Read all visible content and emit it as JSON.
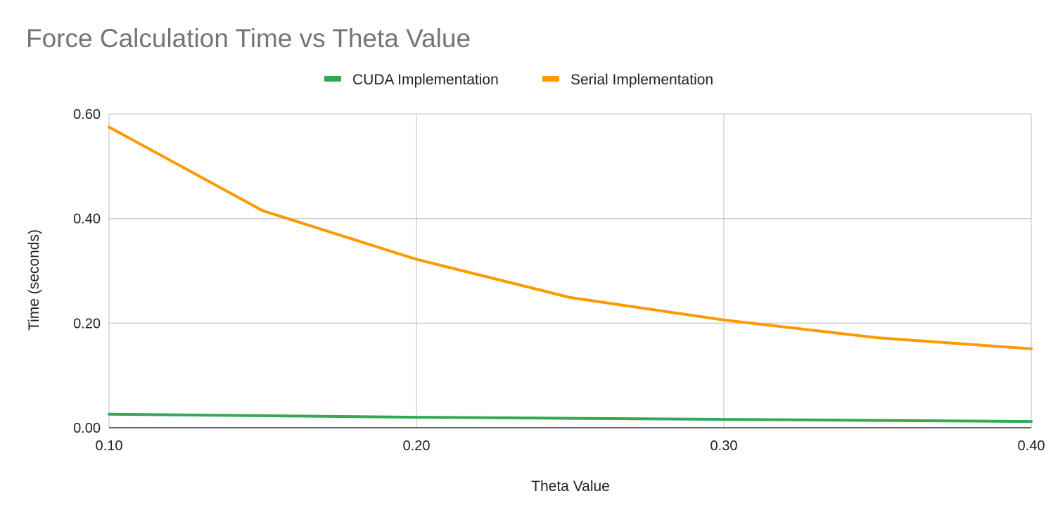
{
  "chart_data": {
    "type": "line",
    "title": "Force Calculation Time vs Theta Value",
    "xlabel": "Theta Value",
    "ylabel": "Time (seconds)",
    "x": [
      0.1,
      0.15,
      0.2,
      0.25,
      0.3,
      0.35,
      0.4
    ],
    "xlim": [
      0.1,
      0.4
    ],
    "ylim": [
      0.0,
      0.6
    ],
    "xticks": [
      0.1,
      0.2,
      0.3,
      0.4
    ],
    "xtick_labels": [
      "0.10",
      "0.20",
      "0.30",
      "0.40"
    ],
    "yticks": [
      0.0,
      0.2,
      0.4,
      0.6
    ],
    "ytick_labels": [
      "0.00",
      "0.20",
      "0.40",
      "0.60"
    ],
    "grid": true,
    "legend_position": "top-center",
    "series": [
      {
        "name": "CUDA Implementation",
        "color": "#34a853",
        "values": [
          0.026,
          0.023,
          0.02,
          0.018,
          0.016,
          0.014,
          0.012
        ]
      },
      {
        "name": "Serial Implementation",
        "color": "#ff9900",
        "values": [
          0.575,
          0.415,
          0.322,
          0.249,
          0.206,
          0.172,
          0.151
        ]
      }
    ]
  }
}
